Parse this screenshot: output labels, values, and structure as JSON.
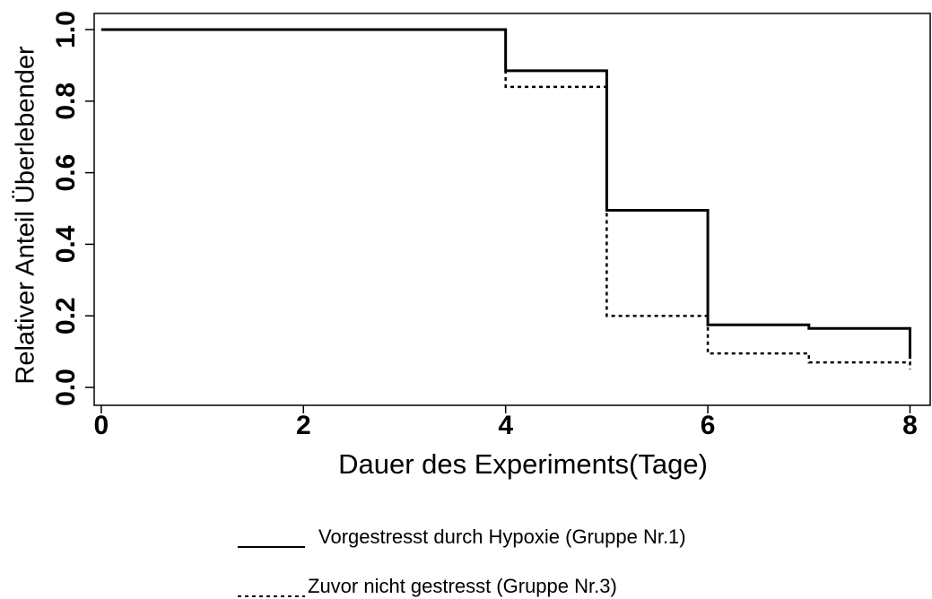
{
  "chart_data": {
    "type": "line",
    "drawstyle": "steps-post",
    "xlabel": "Dauer des Experiments(Tage)",
    "ylabel": "Relativer Anteil Überlebender",
    "x": [
      0,
      4,
      5,
      6,
      7,
      8
    ],
    "series": [
      {
        "name": "Vorgestresst durch Hypoxie (Gruppe Nr.1)",
        "color": "#000000",
        "linestyle": "solid",
        "values": [
          1.0,
          0.885,
          0.495,
          0.175,
          0.165,
          0.08
        ]
      },
      {
        "name": "Zuvor nicht gestresst (Gruppe Nr.3)",
        "color": "#000000",
        "linestyle": "dotted",
        "values": [
          1.0,
          0.84,
          0.2,
          0.095,
          0.07,
          0.05
        ]
      }
    ],
    "xlim": [
      -0.07,
      8.2
    ],
    "ylim": [
      -0.05,
      1.045
    ],
    "xticks": [
      0,
      2,
      4,
      6,
      8
    ],
    "yticks": [
      {
        "value": 0,
        "label": "0.0"
      },
      0.2,
      0.4,
      0.6,
      0.8,
      {
        "value": 1,
        "label": "1.0"
      }
    ],
    "grid": false,
    "legend": "bottom"
  }
}
